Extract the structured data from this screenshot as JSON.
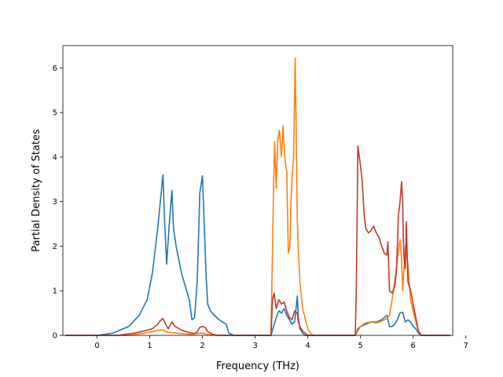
{
  "chart_data": {
    "type": "line",
    "title": "",
    "xlabel": "Frequency (THz)",
    "ylabel": "Partial Density of States",
    "xlim": [
      -0.65,
      6.75
    ],
    "ylim": [
      0,
      6.5
    ],
    "xticks": [
      0,
      1,
      2,
      3,
      4,
      5,
      6,
      7
    ],
    "yticks": [
      0,
      1,
      2,
      3,
      4,
      5,
      6
    ],
    "grid": false,
    "legend": "none",
    "series": [
      {
        "color": "#1f77b4",
        "x": [
          -0.6,
          0.0,
          0.3,
          0.6,
          0.8,
          0.95,
          1.05,
          1.1,
          1.15,
          1.2,
          1.25,
          1.28,
          1.32,
          1.37,
          1.42,
          1.45,
          1.5,
          1.6,
          1.7,
          1.75,
          1.8,
          1.85,
          1.9,
          1.95,
          2.0,
          2.03,
          2.07,
          2.1,
          2.15,
          2.25,
          2.35,
          2.45,
          2.5,
          2.6,
          3.3,
          3.35,
          3.4,
          3.45,
          3.5,
          3.55,
          3.6,
          3.65,
          3.7,
          3.75,
          3.8,
          3.82,
          3.85,
          3.9,
          3.95,
          4.0,
          4.9,
          4.95,
          5.0,
          5.1,
          5.2,
          5.3,
          5.4,
          5.5,
          5.55,
          5.6,
          5.65,
          5.7,
          5.75,
          5.8,
          5.85,
          5.9,
          5.95,
          6.0,
          6.05,
          6.1,
          6.15,
          6.7
        ],
        "y": [
          0,
          0,
          0.05,
          0.2,
          0.45,
          0.8,
          1.4,
          1.9,
          2.4,
          3.0,
          3.6,
          2.6,
          1.6,
          2.5,
          3.25,
          2.4,
          2.0,
          1.4,
          1.0,
          0.8,
          0.35,
          0.4,
          1.2,
          3.2,
          3.58,
          2.6,
          1.3,
          0.7,
          0.55,
          0.42,
          0.32,
          0.25,
          0.05,
          0,
          0,
          0.2,
          0.4,
          0.55,
          0.5,
          0.6,
          0.45,
          0.35,
          0.25,
          0.3,
          0.88,
          0.4,
          0.15,
          0.05,
          0,
          0,
          0,
          0.15,
          0.2,
          0.25,
          0.3,
          0.3,
          0.35,
          0.45,
          0.2,
          0.2,
          0.25,
          0.35,
          0.5,
          0.52,
          0.3,
          0.35,
          0.3,
          0.2,
          0.15,
          0.05,
          0,
          0
        ]
      },
      {
        "color": "#ff7f0e",
        "x": [
          -0.6,
          0.6,
          0.9,
          1.1,
          1.2,
          1.25,
          1.3,
          1.4,
          1.6,
          1.8,
          1.95,
          2.0,
          2.05,
          2.1,
          2.3,
          3.3,
          3.35,
          3.37,
          3.4,
          3.43,
          3.46,
          3.5,
          3.53,
          3.56,
          3.6,
          3.63,
          3.66,
          3.68,
          3.7,
          3.73,
          3.76,
          3.8,
          3.82,
          3.85,
          3.9,
          4.0,
          4.05,
          4.1,
          4.2,
          4.9,
          4.95,
          5.0,
          5.05,
          5.1,
          5.2,
          5.3,
          5.4,
          5.5,
          5.55,
          5.6,
          5.65,
          5.7,
          5.75,
          5.78,
          5.8,
          5.85,
          5.9,
          5.95,
          6.0,
          6.05,
          6.1,
          6.15,
          6.7
        ],
        "y": [
          0,
          0,
          0.05,
          0.1,
          0.12,
          0.12,
          0.08,
          0.06,
          0.04,
          0.02,
          0.05,
          0.05,
          0.04,
          0.02,
          0,
          0,
          3.3,
          4.35,
          3.3,
          4.4,
          4.6,
          4.0,
          4.7,
          4.0,
          3.65,
          1.85,
          2.0,
          3.0,
          3.5,
          4.0,
          6.22,
          2.6,
          1.9,
          1.2,
          0.6,
          0.15,
          0.05,
          0,
          0,
          0,
          0.1,
          0.2,
          0.25,
          0.28,
          0.3,
          0.28,
          0.32,
          0.38,
          0.45,
          0.8,
          1.2,
          1.7,
          2.15,
          1.7,
          1.0,
          2.0,
          1.6,
          0.8,
          0.55,
          0.3,
          0.1,
          0,
          0
        ]
      },
      {
        "color": "#c0392b",
        "x": [
          -0.6,
          0.4,
          0.7,
          0.9,
          1.05,
          1.15,
          1.2,
          1.25,
          1.3,
          1.35,
          1.42,
          1.48,
          1.6,
          1.75,
          1.85,
          1.9,
          1.95,
          2.0,
          2.05,
          2.1,
          2.2,
          2.3,
          3.3,
          3.33,
          3.36,
          3.4,
          3.45,
          3.5,
          3.55,
          3.6,
          3.65,
          3.7,
          3.75,
          3.8,
          3.82,
          3.85,
          3.9,
          4.0,
          4.9,
          4.92,
          4.95,
          5.0,
          5.03,
          5.07,
          5.1,
          5.15,
          5.2,
          5.25,
          5.3,
          5.35,
          5.4,
          5.45,
          5.5,
          5.52,
          5.55,
          5.6,
          5.65,
          5.68,
          5.7,
          5.72,
          5.75,
          5.78,
          5.8,
          5.82,
          5.85,
          5.87,
          5.9,
          5.95,
          6.0,
          6.05,
          6.1,
          6.15,
          6.7
        ],
        "y": [
          0,
          0,
          0.05,
          0.1,
          0.15,
          0.25,
          0.33,
          0.38,
          0.25,
          0.15,
          0.3,
          0.2,
          0.12,
          0.06,
          0.04,
          0.08,
          0.18,
          0.2,
          0.18,
          0.08,
          0.02,
          0,
          0,
          0.8,
          0.95,
          0.6,
          0.8,
          0.7,
          0.75,
          0.55,
          0.4,
          0.35,
          0.55,
          0.5,
          0.3,
          0.2,
          0.1,
          0,
          0,
          1.0,
          4.25,
          3.8,
          3.5,
          2.7,
          2.4,
          2.3,
          2.35,
          2.45,
          2.3,
          2.2,
          2.0,
          1.85,
          1.8,
          2.1,
          1.0,
          0.95,
          1.1,
          1.4,
          2.0,
          2.7,
          3.0,
          3.45,
          3.0,
          1.8,
          1.5,
          2.55,
          1.2,
          1.0,
          0.7,
          0.4,
          0.1,
          0,
          0
        ]
      }
    ]
  }
}
